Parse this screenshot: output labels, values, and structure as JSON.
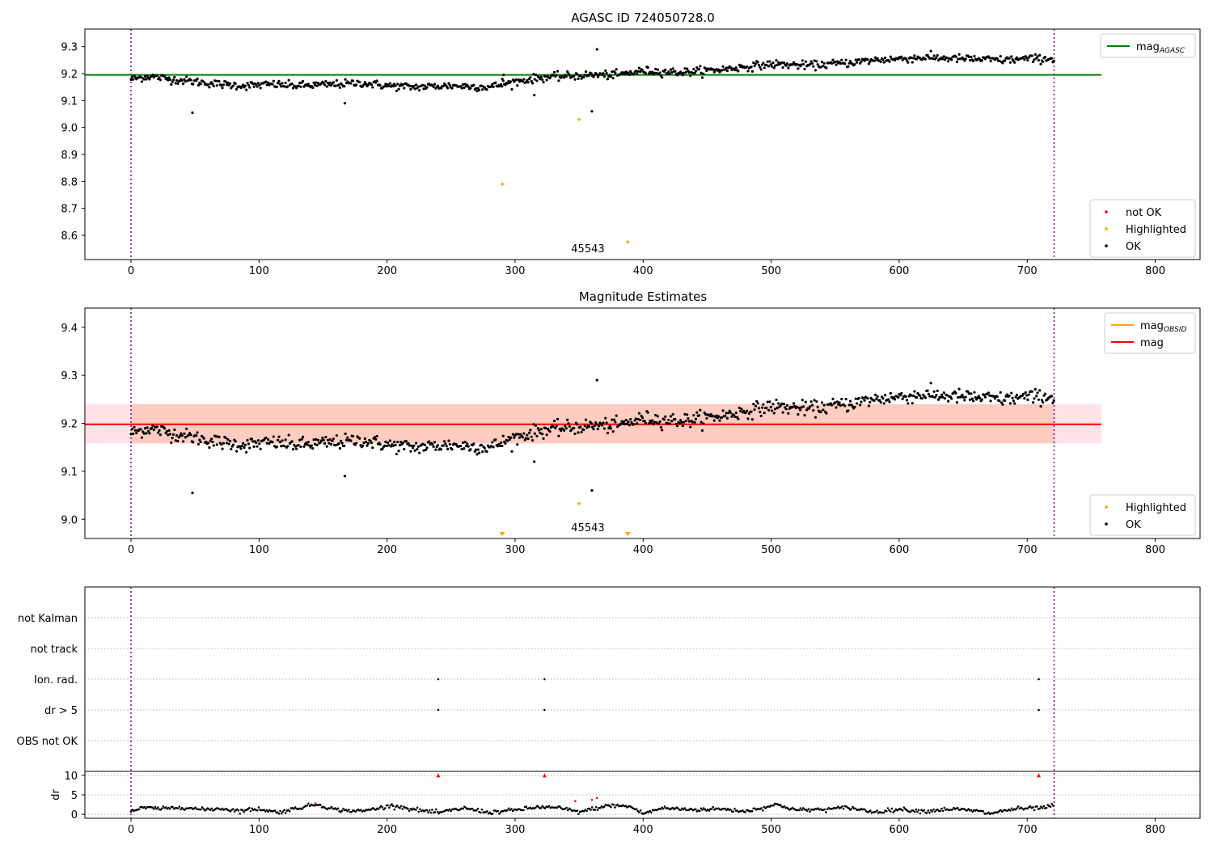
{
  "chart_data": [
    {
      "type": "scatter",
      "title": "AGASC ID 724050728.0",
      "xlim": [
        -36,
        835
      ],
      "ylim": [
        8.51,
        9.365
      ],
      "xticks": [
        0,
        100,
        200,
        300,
        400,
        500,
        600,
        700,
        800
      ],
      "yticks": [
        8.6,
        8.7,
        8.8,
        8.9,
        9.0,
        9.1,
        9.2,
        9.3
      ],
      "reference_line": {
        "label": "mag",
        "subscript": "AGASC",
        "value": 9.195,
        "x_range": [
          -36,
          758
        ],
        "color": "#008000"
      },
      "vlines": [
        0,
        721
      ],
      "obsid_label": {
        "text": "45543",
        "x": 360
      },
      "legend_top": {
        "placement": "top-right",
        "entries": [
          {
            "label": "mag",
            "subscript": "AGASC",
            "color": "#008000"
          }
        ]
      },
      "legend_bottom": {
        "placement": "lower-right",
        "entries": [
          {
            "label": "not OK",
            "color": "#ff0000"
          },
          {
            "label": "Highlighted",
            "color": "#ffa500"
          },
          {
            "label": "OK",
            "color": "#000000"
          }
        ]
      },
      "series": [
        {
          "name": "OK",
          "color": "#000000",
          "trend": [
            [
              0,
              9.18
            ],
            [
              15,
              9.19
            ],
            [
              30,
              9.18
            ],
            [
              50,
              9.17
            ],
            [
              70,
              9.16
            ],
            [
              90,
              9.155
            ],
            [
              110,
              9.16
            ],
            [
              130,
              9.155
            ],
            [
              160,
              9.16
            ],
            [
              180,
              9.165
            ],
            [
              200,
              9.155
            ],
            [
              220,
              9.15
            ],
            [
              250,
              9.155
            ],
            [
              280,
              9.15
            ],
            [
              300,
              9.17
            ],
            [
              320,
              9.185
            ],
            [
              340,
              9.19
            ],
            [
              360,
              9.195
            ],
            [
              380,
              9.195
            ],
            [
              400,
              9.21
            ],
            [
              430,
              9.205
            ],
            [
              460,
              9.215
            ],
            [
              480,
              9.225
            ],
            [
              500,
              9.235
            ],
            [
              530,
              9.23
            ],
            [
              560,
              9.24
            ],
            [
              580,
              9.25
            ],
            [
              600,
              9.255
            ],
            [
              620,
              9.26
            ],
            [
              650,
              9.255
            ],
            [
              680,
              9.25
            ],
            [
              700,
              9.255
            ],
            [
              721,
              9.255
            ]
          ],
          "outliers": [
            [
              48,
              9.055
            ],
            [
              167,
              9.09
            ],
            [
              315,
              9.12
            ],
            [
              360,
              9.06
            ],
            [
              364,
              9.29
            ],
            [
              291,
              9.195
            ],
            [
              290,
              9.18
            ]
          ]
        },
        {
          "name": "Highlighted",
          "color": "#ffa500",
          "points": [
            [
              290,
              8.79
            ],
            [
              350,
              9.03
            ],
            [
              388,
              8.575
            ]
          ]
        },
        {
          "name": "not OK",
          "color": "#ff0000",
          "points": []
        }
      ]
    },
    {
      "type": "scatter",
      "title": "Magnitude Estimates",
      "xlim": [
        -36,
        835
      ],
      "ylim": [
        8.96,
        9.44
      ],
      "xticks": [
        0,
        100,
        200,
        300,
        400,
        500,
        600,
        700,
        800
      ],
      "yticks": [
        9.0,
        9.1,
        9.2,
        9.3,
        9.4
      ],
      "mag_line": {
        "label": "mag",
        "value": 9.198,
        "x_range": [
          -36,
          758
        ],
        "color": "#ff0000"
      },
      "mag_band": {
        "range": [
          9.158,
          9.24
        ],
        "x_range": [
          -36,
          758
        ],
        "color": "#ffc0cb"
      },
      "obsid_band": {
        "range": [
          9.158,
          9.24
        ],
        "x_range": [
          0,
          721
        ],
        "color": "#ffa07a"
      },
      "vlines": [
        0,
        721
      ],
      "obsid_label": {
        "text": "45543",
        "x": 360
      },
      "legend_top": {
        "placement": "top-right",
        "entries": [
          {
            "label": "mag",
            "subscript": "OBSID",
            "color": "#ffa500"
          },
          {
            "label": "mag",
            "color": "#ff0000"
          }
        ]
      },
      "legend_bottom": {
        "placement": "lower-right",
        "entries": [
          {
            "label": "Highlighted",
            "color": "#ffa500"
          },
          {
            "label": "OK",
            "color": "#000000"
          }
        ]
      },
      "series": [
        {
          "name": "OK",
          "color": "#000000",
          "points_ref": "chart_data.0.series.0",
          "outliers": [
            [
              48,
              9.055
            ],
            [
              167,
              9.09
            ],
            [
              315,
              9.12
            ],
            [
              360,
              9.06
            ],
            [
              364,
              9.29
            ]
          ]
        },
        {
          "name": "Highlighted",
          "color": "#ffa500",
          "points": [
            [
              350,
              9.033
            ]
          ],
          "off_scale_markers": [
            290,
            388
          ]
        }
      ]
    },
    {
      "type": "scatter",
      "xlim": [
        -36,
        835
      ],
      "xticks": [
        0,
        100,
        200,
        300,
        400,
        500,
        600,
        700,
        800
      ],
      "categories": [
        "not Kalman",
        "not track",
        "Ion. rad.",
        "dr > 5",
        "OBS not OK"
      ],
      "flag_points": {
        "Ion. rad.": [
          240,
          323,
          709
        ],
        "dr > 5": [
          240,
          323,
          709
        ]
      },
      "vlines": [
        0,
        721
      ],
      "dr_panel": {
        "ylabel": "dr",
        "ylim": [
          -1,
          11
        ],
        "yticks": [
          0,
          5,
          10
        ],
        "clip_value": 10,
        "clip_markers": [
          240,
          323,
          709
        ],
        "red_points": [
          [
            347,
            3.4
          ],
          [
            360,
            3.7
          ],
          [
            364,
            4.2
          ],
          [
            144,
            2.8
          ]
        ],
        "trend": [
          [
            0,
            0.8
          ],
          [
            10,
            1.7
          ],
          [
            25,
            1.4
          ],
          [
            40,
            1.9
          ],
          [
            55,
            1.2
          ],
          [
            70,
            1.5
          ],
          [
            85,
            0.9
          ],
          [
            100,
            1.4
          ],
          [
            115,
            0.5
          ],
          [
            130,
            1.6
          ],
          [
            145,
            2.6
          ],
          [
            160,
            1.2
          ],
          [
            180,
            0.8
          ],
          [
            205,
            2.3
          ],
          [
            220,
            1.3
          ],
          [
            240,
            0.4
          ],
          [
            260,
            1.6
          ],
          [
            280,
            0.5
          ],
          [
            300,
            1.1
          ],
          [
            320,
            1.9
          ],
          [
            335,
            1.6
          ],
          [
            350,
            0.6
          ],
          [
            365,
            1.7
          ],
          [
            375,
            2.3
          ],
          [
            390,
            2.0
          ],
          [
            400,
            0.2
          ],
          [
            415,
            1.6
          ],
          [
            440,
            1.2
          ],
          [
            460,
            1.4
          ],
          [
            480,
            0.8
          ],
          [
            505,
            2.5
          ],
          [
            520,
            1.1
          ],
          [
            545,
            1.3
          ],
          [
            560,
            1.8
          ],
          [
            580,
            0.6
          ],
          [
            600,
            1.3
          ],
          [
            620,
            0.8
          ],
          [
            640,
            1.4
          ],
          [
            660,
            0.9
          ],
          [
            670,
            0.2
          ],
          [
            690,
            1.4
          ],
          [
            710,
            1.6
          ],
          [
            721,
            2.2
          ]
        ]
      }
    }
  ]
}
